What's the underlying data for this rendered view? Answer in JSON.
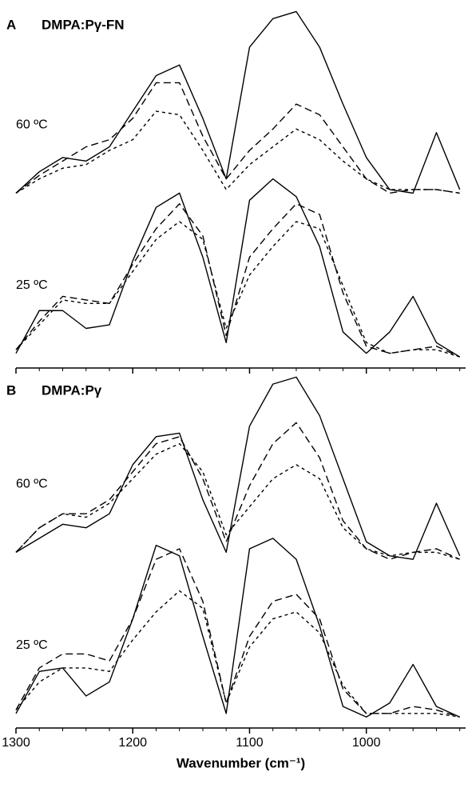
{
  "chart_data": [
    {
      "type": "line",
      "panel": "A",
      "title": "DMPA:Pγ-FN",
      "show_xtick_labels": false,
      "x": [
        1300,
        1280,
        1260,
        1240,
        1220,
        1200,
        1180,
        1160,
        1140,
        1120,
        1100,
        1080,
        1060,
        1040,
        1020,
        1000,
        980,
        960,
        940,
        920
      ],
      "xlim": [
        1300,
        915
      ],
      "xticks": [
        1300,
        1200,
        1100,
        1000
      ],
      "xminorticks": [
        1280,
        1260,
        1240,
        1220,
        1180,
        1160,
        1140,
        1120,
        1080,
        1060,
        1040,
        1020,
        980,
        960,
        940,
        920
      ],
      "ylim": [
        0,
        100
      ],
      "traces": [
        {
          "label": "60 ºC",
          "series": [
            {
              "dash": "solid",
              "color": "#000000",
              "values": [
                48,
                54,
                58,
                57,
                61,
                71,
                81,
                84,
                69,
                52,
                89,
                97,
                99,
                89,
                73,
                58,
                49,
                48,
                65,
                49
              ]
            },
            {
              "dash": "long",
              "color": "#000000",
              "values": [
                48,
                53,
                57,
                61,
                63,
                69,
                79,
                79,
                64,
                52,
                60,
                66,
                73,
                70,
                61,
                52,
                48,
                49,
                49,
                48
              ]
            },
            {
              "dash": "short",
              "color": "#000000",
              "values": [
                48,
                52,
                55,
                56,
                60,
                63,
                71,
                70,
                60,
                49,
                56,
                61,
                66,
                63,
                57,
                52,
                49,
                49,
                49,
                48
              ]
            }
          ]
        },
        {
          "label": "25 ºC",
          "series": [
            {
              "dash": "solid",
              "color": "#000000",
              "values": [
                3,
                15,
                15,
                10,
                11,
                29,
                44,
                48,
                30,
                6,
                46,
                52,
                47,
                33,
                9,
                3,
                9,
                19,
                6,
                2
              ]
            },
            {
              "dash": "long",
              "color": "#000000",
              "values": [
                4,
                12,
                19,
                18,
                17,
                28,
                38,
                45,
                36,
                8,
                30,
                38,
                45,
                42,
                20,
                5,
                3,
                4,
                5,
                2
              ]
            },
            {
              "dash": "short",
              "color": "#000000",
              "values": [
                4,
                11,
                18,
                17,
                17,
                26,
                35,
                40,
                35,
                10,
                25,
                33,
                40,
                38,
                22,
                6,
                3,
                4,
                4,
                2
              ]
            }
          ]
        }
      ]
    },
    {
      "type": "line",
      "panel": "B",
      "title": "DMPA:Pγ",
      "show_xtick_labels": true,
      "xlabel": "Wavenumber (cm⁻¹)",
      "x": [
        1300,
        1280,
        1260,
        1240,
        1220,
        1200,
        1180,
        1160,
        1140,
        1120,
        1100,
        1080,
        1060,
        1040,
        1020,
        1000,
        980,
        960,
        940,
        920
      ],
      "xlim": [
        1300,
        915
      ],
      "xticks": [
        1300,
        1200,
        1100,
        1000
      ],
      "xminorticks": [
        1280,
        1260,
        1240,
        1220,
        1180,
        1160,
        1140,
        1120,
        1080,
        1060,
        1040,
        1020,
        980,
        960,
        940,
        920
      ],
      "ylim": [
        0,
        100
      ],
      "traces": [
        {
          "label": "60 ºC",
          "series": [
            {
              "dash": "solid",
              "color": "#000000",
              "values": [
                49,
                53,
                57,
                56,
                60,
                74,
                82,
                83,
                64,
                49,
                85,
                97,
                99,
                88,
                70,
                52,
                48,
                47,
                63,
                48
              ]
            },
            {
              "dash": "long",
              "color": "#000000",
              "values": [
                49,
                56,
                60,
                60,
                64,
                72,
                80,
                82,
                70,
                52,
                68,
                80,
                86,
                76,
                58,
                50,
                47,
                49,
                50,
                47
              ]
            },
            {
              "dash": "short",
              "color": "#000000",
              "values": [
                49,
                56,
                60,
                59,
                63,
                70,
                77,
                80,
                72,
                54,
                62,
                70,
                74,
                70,
                56,
                50,
                48,
                49,
                49,
                47
              ]
            }
          ]
        },
        {
          "label": "25 ºC",
          "series": [
            {
              "dash": "solid",
              "color": "#000000",
              "values": [
                3,
                15,
                16,
                8,
                12,
                30,
                51,
                48,
                25,
                3,
                50,
                53,
                47,
                28,
                5,
                2,
                6,
                17,
                5,
                2
              ]
            },
            {
              "dash": "long",
              "color": "#000000",
              "values": [
                4,
                16,
                20,
                20,
                18,
                30,
                47,
                50,
                35,
                6,
                25,
                35,
                37,
                30,
                10,
                3,
                3,
                5,
                4,
                2
              ]
            },
            {
              "dash": "short",
              "color": "#000000",
              "values": [
                4,
                12,
                16,
                16,
                15,
                24,
                32,
                38,
                33,
                6,
                22,
                30,
                32,
                26,
                11,
                3,
                3,
                3,
                3,
                2
              ]
            }
          ]
        }
      ]
    }
  ]
}
